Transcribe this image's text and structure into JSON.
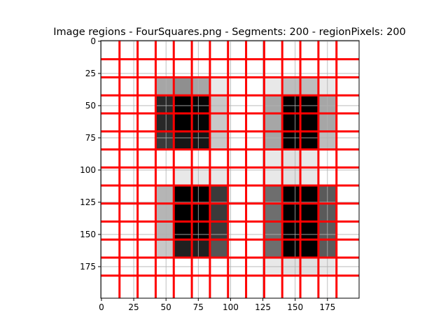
{
  "chart_data": {
    "type": "heatmap",
    "title": "Image regions - FourSquares.png - Segments: 200 - regionPixels: 200",
    "xlabel": "",
    "ylabel": "",
    "xlim": [
      0,
      199
    ],
    "ylim": [
      199,
      0
    ],
    "x_ticks": [
      0,
      25,
      50,
      75,
      100,
      125,
      150,
      175
    ],
    "y_ticks": [
      0,
      25,
      50,
      75,
      100,
      125,
      150,
      175
    ],
    "grid": true,
    "boundary_color": "#ff0000",
    "cell_edges": [
      0,
      14,
      28,
      42,
      56,
      70,
      84,
      98,
      112,
      126,
      140,
      154,
      168,
      182,
      200
    ],
    "vertical_boundaries": [
      14,
      28,
      42,
      56,
      70,
      84,
      98,
      112,
      126,
      140,
      154,
      168,
      182
    ],
    "horizontal_boundaries": [
      14,
      28,
      42,
      56,
      70,
      84,
      98,
      112,
      126,
      140,
      154,
      168,
      182
    ],
    "cells": [
      {
        "col": 3,
        "row": 2,
        "color": "#a6a6a6"
      },
      {
        "col": 4,
        "row": 2,
        "color": "#8f8f8f"
      },
      {
        "col": 5,
        "row": 2,
        "color": "#a6a6a6"
      },
      {
        "col": 6,
        "row": 2,
        "color": "#e8e8e8"
      },
      {
        "col": 9,
        "row": 2,
        "color": "#e8e8e8"
      },
      {
        "col": 10,
        "row": 2,
        "color": "#bdbdbd"
      },
      {
        "col": 11,
        "row": 2,
        "color": "#bdbdbd"
      },
      {
        "col": 12,
        "row": 2,
        "color": "#e8e8e8"
      },
      {
        "col": 3,
        "row": 3,
        "color": "#282828"
      },
      {
        "col": 4,
        "row": 3,
        "color": "#000000"
      },
      {
        "col": 5,
        "row": 3,
        "color": "#050505"
      },
      {
        "col": 6,
        "row": 3,
        "color": "#c8c8c8"
      },
      {
        "col": 9,
        "row": 3,
        "color": "#a6a6a6"
      },
      {
        "col": 10,
        "row": 3,
        "color": "#000000"
      },
      {
        "col": 11,
        "row": 3,
        "color": "#000000"
      },
      {
        "col": 12,
        "row": 3,
        "color": "#a6a6a6"
      },
      {
        "col": 3,
        "row": 4,
        "color": "#282828"
      },
      {
        "col": 4,
        "row": 4,
        "color": "#000000"
      },
      {
        "col": 5,
        "row": 4,
        "color": "#050505"
      },
      {
        "col": 6,
        "row": 4,
        "color": "#c8c8c8"
      },
      {
        "col": 9,
        "row": 4,
        "color": "#a6a6a6"
      },
      {
        "col": 10,
        "row": 4,
        "color": "#000000"
      },
      {
        "col": 11,
        "row": 4,
        "color": "#000000"
      },
      {
        "col": 12,
        "row": 4,
        "color": "#a6a6a6"
      },
      {
        "col": 3,
        "row": 5,
        "color": "#3a3a3a"
      },
      {
        "col": 4,
        "row": 5,
        "color": "#161616"
      },
      {
        "col": 5,
        "row": 5,
        "color": "#161616"
      },
      {
        "col": 6,
        "row": 5,
        "color": "#c8c8c8"
      },
      {
        "col": 9,
        "row": 5,
        "color": "#a6a6a6"
      },
      {
        "col": 10,
        "row": 5,
        "color": "#000000"
      },
      {
        "col": 11,
        "row": 5,
        "color": "#000000"
      },
      {
        "col": 12,
        "row": 5,
        "color": "#bdbdbd"
      },
      {
        "col": 9,
        "row": 6,
        "color": "#e8e8e8"
      },
      {
        "col": 10,
        "row": 6,
        "color": "#e0e0e0"
      },
      {
        "col": 11,
        "row": 6,
        "color": "#e8e8e8"
      },
      {
        "col": 9,
        "row": 7,
        "color": "#e8e8e8"
      },
      {
        "col": 10,
        "row": 7,
        "color": "#e0e0e0"
      },
      {
        "col": 11,
        "row": 7,
        "color": "#e8e8e8"
      },
      {
        "col": 4,
        "row": 7,
        "color": "#e8e8e8"
      },
      {
        "col": 5,
        "row": 7,
        "color": "#e8e8e8"
      },
      {
        "col": 6,
        "row": 7,
        "color": "#e8e8e8"
      },
      {
        "col": 3,
        "row": 8,
        "color": "#b5b5b5"
      },
      {
        "col": 4,
        "row": 8,
        "color": "#000000"
      },
      {
        "col": 5,
        "row": 8,
        "color": "#000000"
      },
      {
        "col": 6,
        "row": 8,
        "color": "#3a3a3a"
      },
      {
        "col": 9,
        "row": 8,
        "color": "#6e6e6e"
      },
      {
        "col": 10,
        "row": 8,
        "color": "#000000"
      },
      {
        "col": 11,
        "row": 8,
        "color": "#000000"
      },
      {
        "col": 12,
        "row": 8,
        "color": "#5a5a5a"
      },
      {
        "col": 3,
        "row": 9,
        "color": "#b5b5b5"
      },
      {
        "col": 4,
        "row": 9,
        "color": "#000000"
      },
      {
        "col": 5,
        "row": 9,
        "color": "#000000"
      },
      {
        "col": 6,
        "row": 9,
        "color": "#3a3a3a"
      },
      {
        "col": 9,
        "row": 9,
        "color": "#6e6e6e"
      },
      {
        "col": 10,
        "row": 9,
        "color": "#000000"
      },
      {
        "col": 11,
        "row": 9,
        "color": "#000000"
      },
      {
        "col": 12,
        "row": 9,
        "color": "#5a5a5a"
      },
      {
        "col": 3,
        "row": 10,
        "color": "#b5b5b5"
      },
      {
        "col": 4,
        "row": 10,
        "color": "#000000"
      },
      {
        "col": 5,
        "row": 10,
        "color": "#000000"
      },
      {
        "col": 6,
        "row": 10,
        "color": "#3a3a3a"
      },
      {
        "col": 9,
        "row": 10,
        "color": "#6e6e6e"
      },
      {
        "col": 10,
        "row": 10,
        "color": "#000000"
      },
      {
        "col": 11,
        "row": 10,
        "color": "#000000"
      },
      {
        "col": 12,
        "row": 10,
        "color": "#5a5a5a"
      },
      {
        "col": 3,
        "row": 11,
        "color": "#c8c8c8"
      },
      {
        "col": 4,
        "row": 11,
        "color": "#202020"
      },
      {
        "col": 5,
        "row": 11,
        "color": "#202020"
      },
      {
        "col": 6,
        "row": 11,
        "color": "#555555"
      },
      {
        "col": 9,
        "row": 11,
        "color": "#6e6e6e"
      },
      {
        "col": 10,
        "row": 11,
        "color": "#000000"
      },
      {
        "col": 11,
        "row": 11,
        "color": "#000000"
      },
      {
        "col": 12,
        "row": 11,
        "color": "#5a5a5a"
      },
      {
        "col": 9,
        "row": 12,
        "color": "#e8e8e8"
      },
      {
        "col": 10,
        "row": 12,
        "color": "#e0e0e0"
      },
      {
        "col": 11,
        "row": 12,
        "color": "#e0e0e0"
      },
      {
        "col": 12,
        "row": 12,
        "color": "#e8e8e8"
      }
    ]
  }
}
